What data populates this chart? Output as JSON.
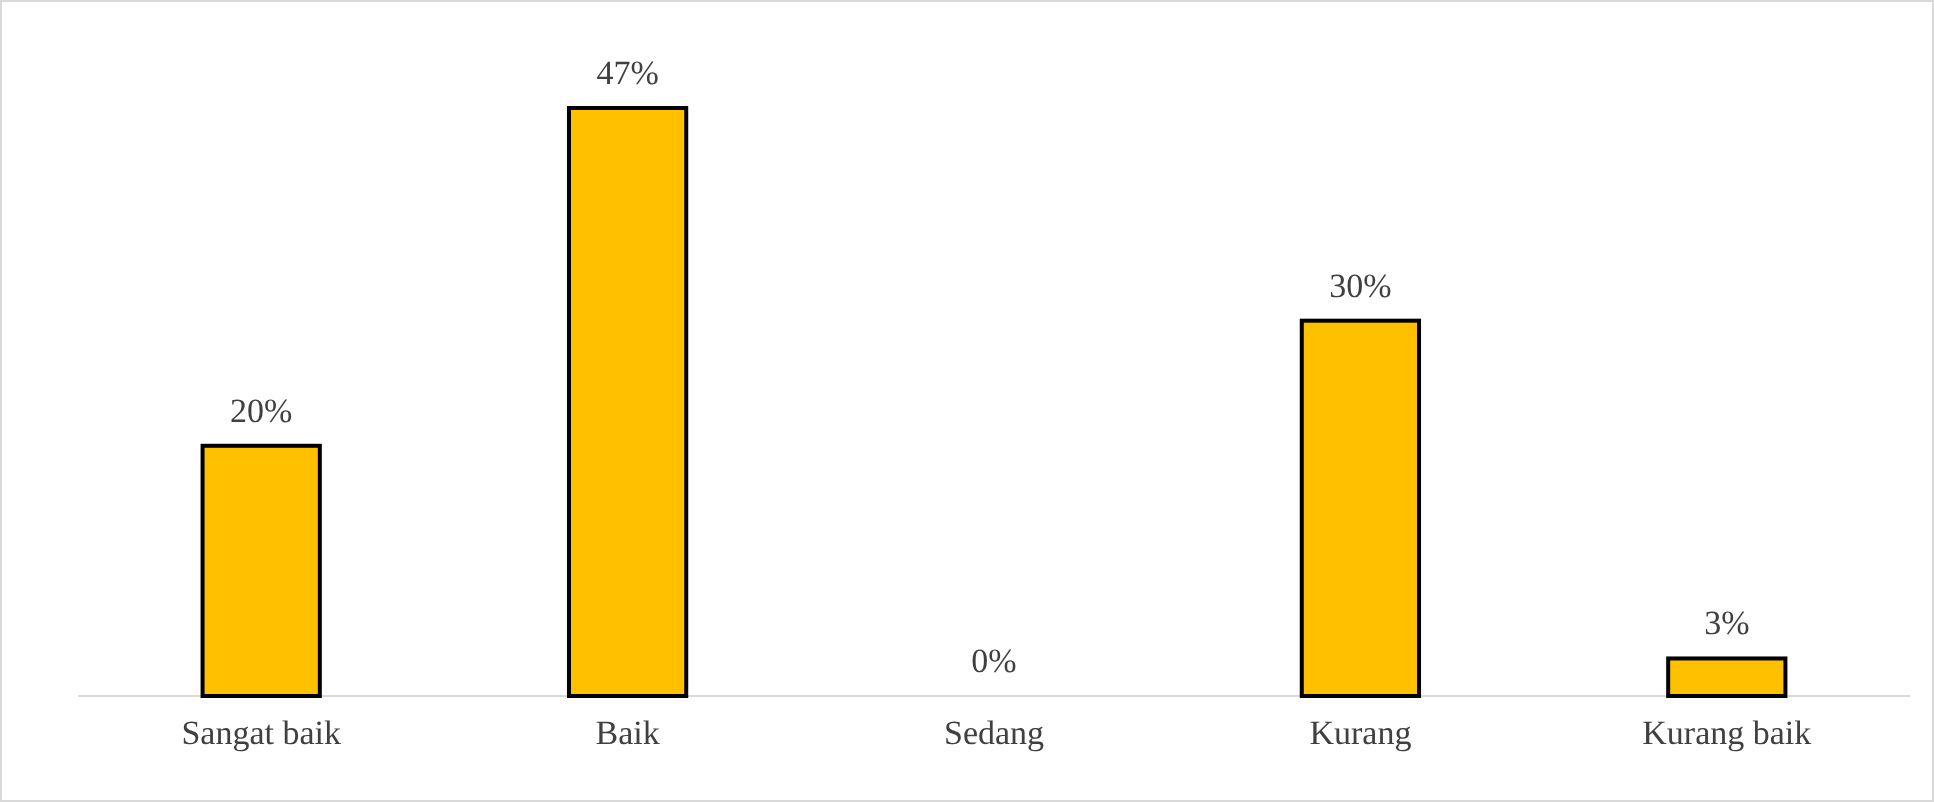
{
  "chart_data": {
    "type": "bar",
    "categories": [
      "Sangat baik",
      "Baik",
      "Sedang",
      "Kurang",
      "Kurang baik"
    ],
    "series": [
      {
        "color": "#ffc000",
        "values": [
          20,
          47,
          0,
          30,
          3
        ],
        "value_labels": [
          "20%",
          "47%",
          "0%",
          "30%",
          "3%"
        ]
      }
    ],
    "tick_labels": "x"
  }
}
